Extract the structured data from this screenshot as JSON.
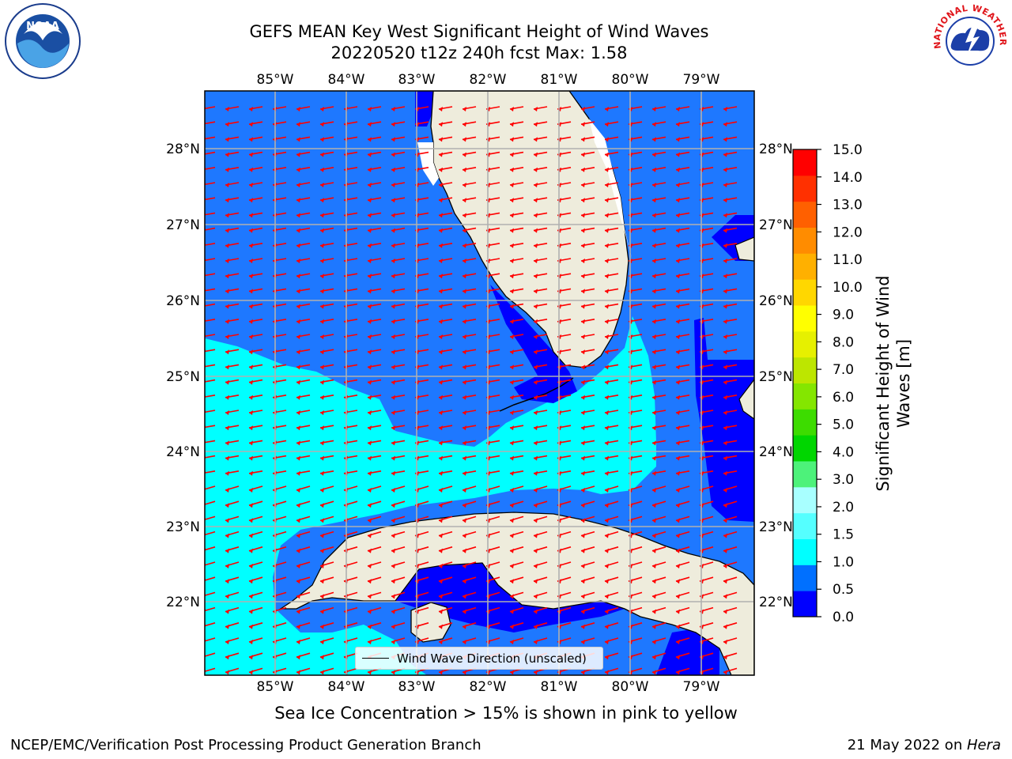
{
  "title": {
    "line1": "GEFS MEAN Key West Significant Height of Wind Waves",
    "line2": "20220520 t12z 240h fcst   Max: 1.58"
  },
  "axes": {
    "lon_ticks": [
      "85°W",
      "84°W",
      "83°W",
      "82°W",
      "81°W",
      "80°W",
      "79°W"
    ],
    "lat_ticks": [
      "28°N",
      "27°N",
      "26°N",
      "25°N",
      "24°N",
      "23°N",
      "22°N"
    ]
  },
  "legend": {
    "label": "Wind Wave Direction (unscaled)"
  },
  "colorbar": {
    "label": "Significant Height of Wind Waves [m]",
    "ticks": [
      "15.0",
      "14.0",
      "13.0",
      "12.0",
      "11.0",
      "10.0",
      "9.0",
      "8.0",
      "7.0",
      "6.0",
      "5.0",
      "4.0",
      "3.0",
      "2.0",
      "1.5",
      "1.0",
      "0.5",
      "0.0"
    ],
    "colors": [
      "#0000ff",
      "#0070ff",
      "#00ffff",
      "#55ffff",
      "#a8ffff",
      "#4df27a",
      "#00d600",
      "#3ddc00",
      "#84e600",
      "#bde600",
      "#e6f000",
      "#ffff00",
      "#ffd700",
      "#ffb000",
      "#ff8c00",
      "#ff6000",
      "#ff3000",
      "#ff0000"
    ]
  },
  "notes": {
    "sea_ice": "Sea Ice Concentration > 15% is shown in pink to yellow"
  },
  "footer": {
    "left": "NCEP/EMC/Verification Post Processing Product Generation Branch",
    "date": "21 May 2022 on ",
    "machine": "Hera"
  },
  "logos": {
    "noaa": "NOAA",
    "nws_text": "NATIONAL WEATHER SERVICE"
  },
  "map_colors": {
    "deep_blue": "#0000ff",
    "mid_blue": "#1e78ff",
    "cyan": "#00ffff",
    "land": "#eeecdc",
    "arrow": "#ff0000"
  }
}
